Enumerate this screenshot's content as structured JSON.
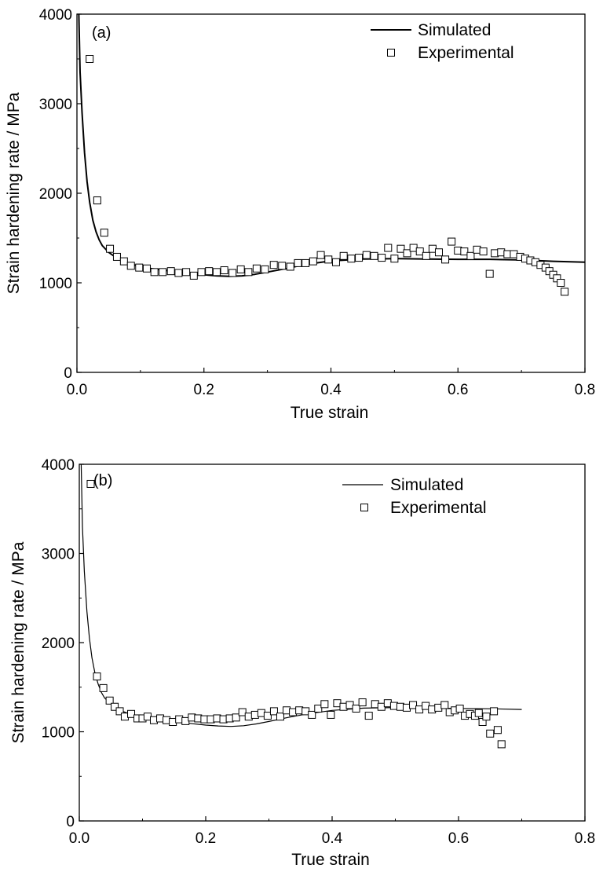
{
  "chart_data": [
    {
      "type": "scatter",
      "panel_label": "(a)",
      "xlabel": "True strain",
      "ylabel": "Strain hardening rate / MPa",
      "xlim": [
        0,
        0.8
      ],
      "ylim": [
        0,
        4000
      ],
      "xticks": [
        0.0,
        0.2,
        0.4,
        0.6,
        0.8
      ],
      "xtick_labels": [
        "0.0",
        "0.2",
        "0.4",
        "0.6",
        "0.8"
      ],
      "yticks": [
        0,
        1000,
        2000,
        3000,
        4000
      ],
      "ytick_labels": [
        "0",
        "1000",
        "2000",
        "3000",
        "4000"
      ],
      "legend_position": "top-right",
      "series": [
        {
          "name": "Simulated",
          "style": "line",
          "stroke_width": 2,
          "x": [
            0.003,
            0.005,
            0.008,
            0.012,
            0.016,
            0.02,
            0.025,
            0.03,
            0.035,
            0.04,
            0.05,
            0.06,
            0.07,
            0.08,
            0.1,
            0.12,
            0.15,
            0.18,
            0.2,
            0.22,
            0.24,
            0.26,
            0.28,
            0.3,
            0.33,
            0.36,
            0.4,
            0.45,
            0.5,
            0.55,
            0.6,
            0.65,
            0.7,
            0.75,
            0.8
          ],
          "y": [
            4000,
            3350,
            2900,
            2450,
            2130,
            1900,
            1700,
            1570,
            1480,
            1415,
            1340,
            1290,
            1250,
            1220,
            1180,
            1155,
            1130,
            1105,
            1090,
            1078,
            1072,
            1078,
            1095,
            1120,
            1160,
            1205,
            1245,
            1265,
            1270,
            1265,
            1262,
            1262,
            1255,
            1240,
            1230
          ]
        },
        {
          "name": "Experimental",
          "style": "marker",
          "x": [
            0.02,
            0.032,
            0.043,
            0.052,
            0.063,
            0.074,
            0.085,
            0.098,
            0.11,
            0.122,
            0.135,
            0.148,
            0.16,
            0.172,
            0.184,
            0.196,
            0.208,
            0.22,
            0.232,
            0.245,
            0.258,
            0.27,
            0.283,
            0.296,
            0.31,
            0.323,
            0.336,
            0.348,
            0.36,
            0.372,
            0.384,
            0.396,
            0.408,
            0.42,
            0.432,
            0.444,
            0.456,
            0.468,
            0.48,
            0.49,
            0.5,
            0.51,
            0.52,
            0.53,
            0.54,
            0.55,
            0.56,
            0.57,
            0.58,
            0.59,
            0.6,
            0.61,
            0.62,
            0.63,
            0.64,
            0.65,
            0.658,
            0.668,
            0.678,
            0.688,
            0.698,
            0.706,
            0.714,
            0.722,
            0.73,
            0.738,
            0.744,
            0.75,
            0.756,
            0.762,
            0.768
          ],
          "y": [
            3500,
            1920,
            1560,
            1380,
            1290,
            1240,
            1190,
            1170,
            1160,
            1120,
            1120,
            1130,
            1110,
            1120,
            1080,
            1120,
            1130,
            1120,
            1140,
            1110,
            1150,
            1120,
            1160,
            1150,
            1200,
            1190,
            1180,
            1220,
            1220,
            1240,
            1310,
            1260,
            1230,
            1300,
            1270,
            1280,
            1310,
            1300,
            1280,
            1390,
            1270,
            1380,
            1330,
            1390,
            1350,
            1300,
            1380,
            1340,
            1260,
            1460,
            1360,
            1350,
            1300,
            1370,
            1350,
            1100,
            1330,
            1340,
            1320,
            1320,
            1290,
            1270,
            1250,
            1230,
            1200,
            1170,
            1130,
            1090,
            1050,
            1000,
            900
          ]
        }
      ]
    },
    {
      "type": "scatter",
      "panel_label": "(b)",
      "xlabel": "True strain",
      "ylabel": "Strain hardening rate / MPa",
      "xlim": [
        0,
        0.8
      ],
      "ylim": [
        0,
        4000
      ],
      "xticks": [
        0.0,
        0.2,
        0.4,
        0.6,
        0.8
      ],
      "xtick_labels": [
        "0.0",
        "0.2",
        "0.4",
        "0.6",
        "0.8"
      ],
      "yticks": [
        0,
        1000,
        2000,
        3000,
        4000
      ],
      "ytick_labels": [
        "0",
        "1000",
        "2000",
        "3000",
        "4000"
      ],
      "legend_position": "top-right",
      "series": [
        {
          "name": "Simulated",
          "style": "line",
          "stroke_width": 1.2,
          "x": [
            0.003,
            0.005,
            0.008,
            0.012,
            0.016,
            0.02,
            0.025,
            0.03,
            0.035,
            0.04,
            0.05,
            0.06,
            0.07,
            0.08,
            0.1,
            0.12,
            0.15,
            0.18,
            0.2,
            0.22,
            0.24,
            0.26,
            0.28,
            0.3,
            0.33,
            0.36,
            0.4,
            0.45,
            0.5,
            0.55,
            0.6,
            0.65,
            0.7
          ],
          "y": [
            4000,
            3300,
            2800,
            2350,
            2050,
            1830,
            1650,
            1530,
            1440,
            1380,
            1310,
            1260,
            1225,
            1200,
            1165,
            1140,
            1115,
            1090,
            1075,
            1065,
            1060,
            1068,
            1088,
            1115,
            1160,
            1200,
            1240,
            1265,
            1272,
            1268,
            1262,
            1258,
            1250
          ]
        },
        {
          "name": "Experimental",
          "style": "marker",
          "x": [
            0.018,
            0.028,
            0.038,
            0.048,
            0.056,
            0.064,
            0.072,
            0.082,
            0.092,
            0.1,
            0.108,
            0.118,
            0.128,
            0.138,
            0.148,
            0.158,
            0.168,
            0.178,
            0.188,
            0.198,
            0.208,
            0.218,
            0.228,
            0.238,
            0.248,
            0.258,
            0.268,
            0.278,
            0.288,
            0.298,
            0.308,
            0.318,
            0.328,
            0.338,
            0.348,
            0.358,
            0.368,
            0.378,
            0.388,
            0.398,
            0.408,
            0.418,
            0.428,
            0.438,
            0.448,
            0.458,
            0.468,
            0.478,
            0.488,
            0.498,
            0.508,
            0.518,
            0.528,
            0.538,
            0.548,
            0.558,
            0.568,
            0.578,
            0.586,
            0.594,
            0.602,
            0.61,
            0.618,
            0.626,
            0.632,
            0.638,
            0.644,
            0.65,
            0.656,
            0.662,
            0.668
          ],
          "y": [
            3780,
            1620,
            1490,
            1350,
            1280,
            1230,
            1170,
            1200,
            1150,
            1150,
            1170,
            1130,
            1150,
            1130,
            1110,
            1140,
            1120,
            1160,
            1150,
            1140,
            1140,
            1150,
            1140,
            1150,
            1160,
            1220,
            1170,
            1190,
            1210,
            1180,
            1230,
            1170,
            1240,
            1220,
            1240,
            1230,
            1190,
            1260,
            1310,
            1190,
            1320,
            1280,
            1300,
            1260,
            1330,
            1180,
            1310,
            1280,
            1320,
            1290,
            1280,
            1270,
            1300,
            1250,
            1290,
            1250,
            1270,
            1300,
            1220,
            1240,
            1260,
            1180,
            1200,
            1180,
            1210,
            1110,
            1170,
            980,
            1230,
            1020,
            860
          ]
        }
      ]
    }
  ]
}
